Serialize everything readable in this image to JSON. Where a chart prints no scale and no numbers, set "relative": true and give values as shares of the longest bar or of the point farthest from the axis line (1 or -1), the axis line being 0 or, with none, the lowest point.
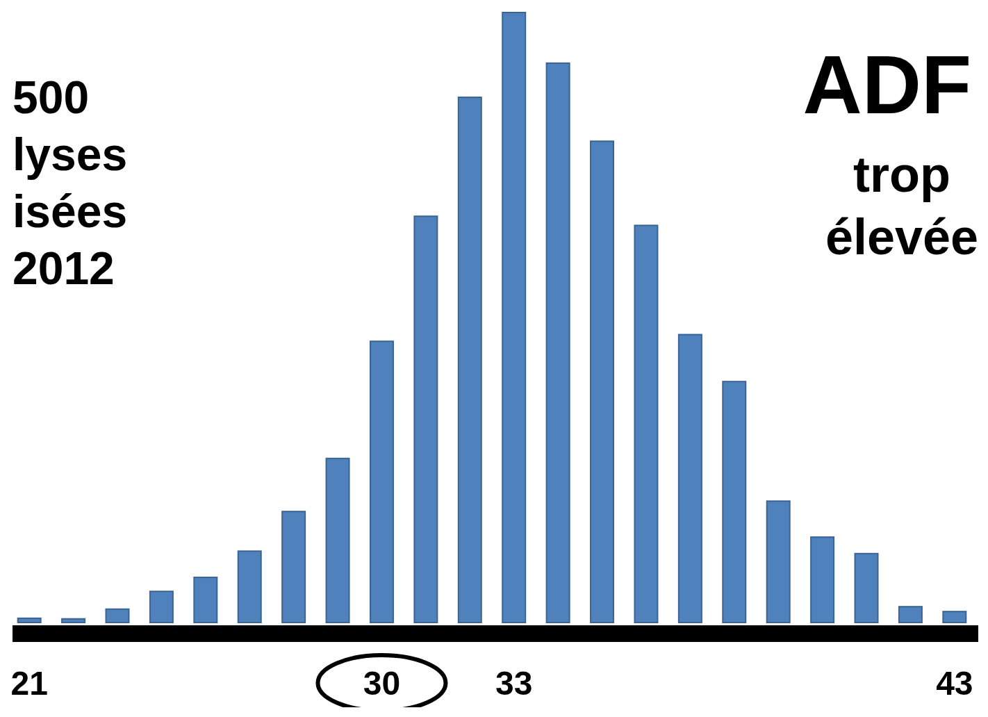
{
  "chart_data": {
    "type": "bar",
    "relative": true,
    "title": "ADF",
    "annotations": [
      "500",
      "lyses",
      "isées",
      "2012",
      "trop",
      "élevée"
    ],
    "categories": [
      "21",
      null,
      null,
      null,
      null,
      null,
      null,
      null,
      "30",
      null,
      null,
      "33",
      null,
      null,
      null,
      null,
      null,
      null,
      null,
      null,
      null,
      "43"
    ],
    "values": [
      0.007,
      0.006,
      0.022,
      0.051,
      0.074,
      0.117,
      0.182,
      0.269,
      0.461,
      0.666,
      0.861,
      1,
      0.917,
      0.789,
      0.651,
      0.472,
      0.395,
      0.199,
      0.14,
      0.113,
      0.026,
      0.018
    ],
    "color": "#4f81bd"
  }
}
